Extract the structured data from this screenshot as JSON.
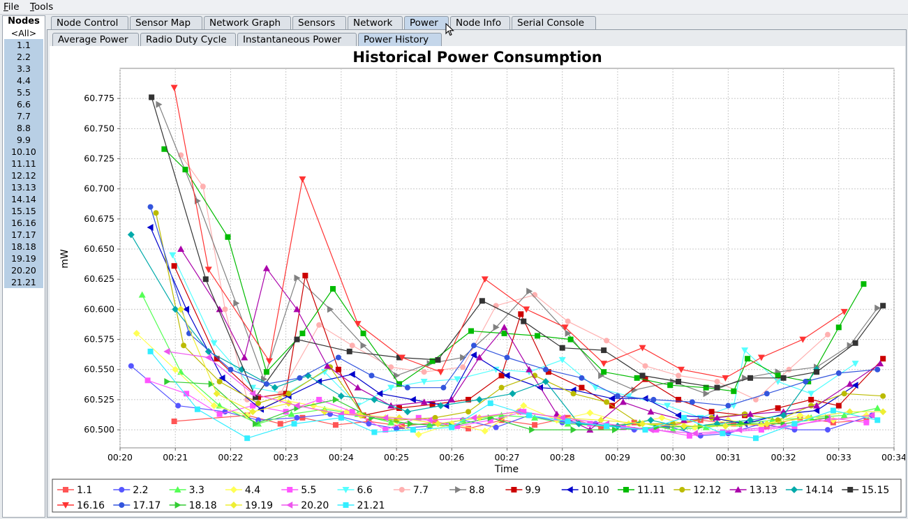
{
  "menu": {
    "file": "File",
    "tools": "Tools"
  },
  "nodes": {
    "title": "Nodes",
    "all_label": "<All>",
    "items": [
      "1.1",
      "2.2",
      "3.3",
      "4.4",
      "5.5",
      "6.6",
      "7.7",
      "8.8",
      "9.9",
      "10.10",
      "11.11",
      "12.12",
      "13.13",
      "14.14",
      "15.15",
      "16.16",
      "17.17",
      "18.18",
      "19.19",
      "20.20",
      "21.21"
    ]
  },
  "top_tabs": [
    "Node Control",
    "Sensor Map",
    "Network Graph",
    "Sensors",
    "Network",
    "Power",
    "Node Info",
    "Serial Console"
  ],
  "top_tab_active": "Power",
  "sub_tabs": [
    "Average Power",
    "Radio Duty Cycle",
    "Instantaneous Power",
    "Power History"
  ],
  "sub_tab_active": "Power History",
  "chart_data": {
    "type": "line",
    "title": "Historical Power Consumption",
    "xlabel": "Time",
    "ylabel": "mW",
    "xticks": [
      "00:20",
      "00:21",
      "00:22",
      "00:23",
      "00:24",
      "00:25",
      "00:26",
      "00:27",
      "00:28",
      "00:29",
      "00:30",
      "00:31",
      "00:32",
      "00:33",
      "00:34"
    ],
    "xlim_minutes": [
      20.0,
      34.0
    ],
    "ylim": [
      60.485,
      60.8
    ],
    "yticks": [
      60.5,
      60.525,
      60.55,
      60.575,
      60.6,
      60.625,
      60.65,
      60.675,
      60.7,
      60.725,
      60.75,
      60.775
    ],
    "grid": true,
    "legend_position": "bottom",
    "series": [
      {
        "name": "1.1",
        "color": "#ff5555",
        "marker": "square",
        "x": [
          20.98,
          22.3,
          22.9,
          23.3,
          23.9,
          24.5,
          25.1,
          25.7,
          26.3,
          26.9,
          27.5,
          28.1,
          28.7,
          29.3,
          29.9,
          30.5,
          31.1,
          31.7,
          32.3,
          32.9,
          33.5
        ],
        "y": [
          60.507,
          60.512,
          60.505,
          60.51,
          60.504,
          60.507,
          60.503,
          60.506,
          60.501,
          60.508,
          60.504,
          60.51,
          60.502,
          60.506,
          60.503,
          60.508,
          60.505,
          60.503,
          60.51,
          60.506,
          60.508
        ]
      },
      {
        "name": "2.2",
        "color": "#5555ff",
        "marker": "circle",
        "x": [
          20.2,
          21.05,
          21.9,
          22.5,
          23.2,
          23.8,
          24.5,
          25.0,
          25.6,
          26.2,
          26.8,
          27.4,
          28.0,
          28.6,
          29.3,
          29.9,
          30.5,
          31.0,
          31.6,
          32.2,
          32.8,
          33.6
        ],
        "y": [
          60.553,
          60.52,
          60.515,
          60.508,
          60.51,
          60.513,
          60.505,
          60.501,
          60.503,
          60.508,
          60.502,
          60.512,
          60.506,
          60.505,
          60.5,
          60.503,
          60.495,
          60.497,
          60.505,
          60.5,
          60.5,
          60.512
        ]
      },
      {
        "name": "3.3",
        "color": "#55ff55",
        "marker": "triangle-up",
        "x": [
          20.4,
          21.1,
          21.8,
          22.5,
          23.1,
          23.7,
          24.3,
          24.9,
          25.6,
          26.2,
          26.9,
          27.5,
          28.1,
          28.8,
          29.4,
          30.0,
          30.6,
          31.2,
          31.8,
          32.5,
          33.1,
          33.7
        ],
        "y": [
          60.612,
          60.548,
          60.52,
          60.505,
          60.513,
          60.517,
          60.513,
          60.506,
          60.504,
          60.508,
          60.512,
          60.51,
          60.505,
          60.503,
          60.506,
          60.5,
          60.502,
          60.505,
          60.508,
          60.51,
          60.512,
          60.518
        ]
      },
      {
        "name": "4.4",
        "color": "#ffff55",
        "marker": "diamond",
        "x": [
          20.3,
          21.0,
          21.7,
          22.3,
          22.9,
          23.5,
          24.1,
          24.8,
          25.4,
          26.0,
          26.6,
          27.3,
          27.9,
          28.5,
          29.2,
          29.8,
          30.4,
          31.0,
          31.6,
          32.3,
          32.9,
          33.5
        ],
        "y": [
          60.58,
          60.55,
          60.52,
          60.512,
          60.525,
          60.52,
          60.515,
          60.51,
          60.496,
          60.505,
          60.499,
          60.52,
          60.508,
          60.514,
          60.505,
          60.51,
          60.502,
          60.508,
          60.504,
          60.512,
          60.508,
          60.512
        ]
      },
      {
        "name": "5.5",
        "color": "#ff55ff",
        "marker": "square",
        "x": [
          20.5,
          21.2,
          21.8,
          22.4,
          23.0,
          23.6,
          24.2,
          24.8,
          25.4,
          26.1,
          26.7,
          27.3,
          27.9,
          28.5,
          29.1,
          29.7,
          30.3,
          30.9,
          31.6,
          32.2,
          32.8,
          33.5
        ],
        "y": [
          60.541,
          60.53,
          60.513,
          60.52,
          60.515,
          60.525,
          60.515,
          60.5,
          60.51,
          60.503,
          60.508,
          60.515,
          60.51,
          60.505,
          60.502,
          60.5,
          60.495,
          60.498,
          60.5,
          60.503,
          60.51,
          60.506
        ]
      },
      {
        "name": "6.6",
        "color": "#55ffff",
        "marker": "triangle-down",
        "x": [
          20.95,
          21.7,
          22.4,
          23.0,
          23.7,
          24.3,
          24.9,
          25.5,
          26.1,
          26.8,
          27.4,
          28.0,
          28.6,
          29.2,
          29.9,
          30.5,
          31.1,
          31.3,
          31.9,
          32.5,
          33.3
        ],
        "y": [
          60.645,
          60.572,
          60.535,
          60.53,
          60.548,
          60.52,
          60.535,
          60.54,
          60.542,
          60.55,
          60.548,
          60.558,
          60.535,
          60.528,
          60.52,
          60.51,
          60.52,
          60.566,
          60.54,
          60.53,
          60.555
        ]
      },
      {
        "name": "7.7",
        "color": "#ffb0b0",
        "marker": "circle",
        "x": [
          21.1,
          21.5,
          21.9,
          22.3,
          22.9,
          23.6,
          24.2,
          24.9,
          25.5,
          26.2,
          26.8,
          27.5,
          28.1,
          28.8,
          29.5,
          30.1,
          30.8,
          31.5,
          32.1,
          32.8
        ],
        "y": [
          60.728,
          60.702,
          60.6,
          60.525,
          60.53,
          60.587,
          60.57,
          60.552,
          60.548,
          60.552,
          60.603,
          60.612,
          60.59,
          60.574,
          60.553,
          60.545,
          60.54,
          60.525,
          60.55,
          60.579
        ]
      },
      {
        "name": "8.8",
        "color": "#808080",
        "marker": "triangle-right",
        "x": [
          20.7,
          21.4,
          22.1,
          22.6,
          23.2,
          23.8,
          24.4,
          25.0,
          25.6,
          26.2,
          26.8,
          27.4,
          28.1,
          28.7,
          29.3,
          30.0,
          30.6,
          31.3,
          31.9,
          32.6,
          33.2,
          33.7
        ],
        "y": [
          60.77,
          60.69,
          60.605,
          60.542,
          60.626,
          60.6,
          60.57,
          60.545,
          60.555,
          60.56,
          60.585,
          60.615,
          60.58,
          60.545,
          60.533,
          60.54,
          60.53,
          60.543,
          60.548,
          60.552,
          60.57,
          60.601
        ]
      },
      {
        "name": "9.9",
        "color": "#cc0000",
        "marker": "square",
        "x": [
          20.98,
          21.75,
          22.5,
          23.0,
          23.35,
          23.95,
          24.4,
          25.05,
          25.65,
          26.3,
          26.9,
          27.25,
          27.75,
          28.35,
          28.9,
          29.5,
          30.1,
          30.7,
          31.3,
          31.9,
          32.5,
          33.0,
          33.8
        ],
        "y": [
          60.636,
          60.559,
          60.527,
          60.53,
          60.628,
          60.55,
          60.512,
          60.518,
          60.521,
          60.525,
          60.545,
          60.596,
          60.548,
          60.535,
          60.52,
          60.542,
          60.525,
          60.515,
          60.512,
          60.518,
          60.525,
          60.52,
          60.559
        ]
      },
      {
        "name": "10.10",
        "color": "#0000cc",
        "marker": "triangle-left",
        "x": [
          20.55,
          21.2,
          21.85,
          22.55,
          23.05,
          23.6,
          24.2,
          24.7,
          25.3,
          25.9,
          26.4,
          27.0,
          27.6,
          28.2,
          28.9,
          29.5,
          30.1,
          30.7,
          31.3,
          32.0,
          32.6,
          33.3
        ],
        "y": [
          60.668,
          60.6,
          60.543,
          60.517,
          60.528,
          60.54,
          60.546,
          60.53,
          60.525,
          60.52,
          60.562,
          60.545,
          60.535,
          60.533,
          60.526,
          60.526,
          60.512,
          60.51,
          60.505,
          60.513,
          60.516,
          60.537
        ]
      },
      {
        "name": "11.11",
        "color": "#00bb00",
        "marker": "square",
        "x": [
          20.8,
          21.18,
          21.95,
          22.65,
          23.3,
          23.85,
          24.4,
          25.05,
          25.65,
          26.35,
          26.95,
          27.55,
          28.15,
          28.75,
          29.35,
          29.95,
          30.6,
          31.1,
          31.35,
          31.9,
          32.45,
          33.0,
          33.45
        ],
        "y": [
          60.733,
          60.716,
          60.66,
          60.548,
          60.58,
          60.617,
          60.58,
          60.538,
          60.557,
          60.582,
          60.58,
          60.578,
          60.575,
          60.548,
          60.543,
          60.537,
          60.535,
          60.532,
          60.559,
          60.545,
          60.54,
          60.585,
          60.621
        ]
      },
      {
        "name": "12.12",
        "color": "#bbbb00",
        "marker": "circle",
        "x": [
          20.65,
          21.15,
          21.8,
          22.5,
          23.05,
          23.8,
          24.4,
          25.0,
          25.7,
          26.3,
          26.9,
          27.5,
          28.2,
          28.8,
          29.4,
          30.0,
          30.7,
          31.3,
          31.9,
          32.5,
          33.1,
          33.8
        ],
        "y": [
          60.68,
          60.57,
          60.54,
          60.522,
          60.53,
          60.552,
          60.512,
          60.508,
          60.51,
          60.515,
          60.535,
          60.545,
          60.53,
          60.523,
          60.505,
          60.505,
          60.51,
          60.513,
          60.508,
          60.52,
          60.53,
          60.528
        ]
      },
      {
        "name": "13.13",
        "color": "#aa00aa",
        "marker": "triangle-up",
        "x": [
          21.1,
          21.8,
          22.25,
          22.65,
          23.2,
          23.75,
          24.3,
          24.9,
          25.5,
          26.0,
          26.5,
          26.95,
          27.4,
          27.9,
          28.5,
          29.1,
          29.6,
          30.2,
          30.8,
          31.4,
          32.0,
          32.6,
          33.2,
          33.75
        ],
        "y": [
          60.65,
          60.6,
          60.56,
          60.634,
          60.6,
          60.553,
          60.535,
          60.52,
          60.523,
          60.525,
          60.56,
          60.585,
          60.55,
          60.513,
          60.5,
          60.523,
          60.515,
          60.508,
          60.51,
          60.513,
          60.515,
          60.52,
          60.538,
          60.555
        ]
      },
      {
        "name": "14.14",
        "color": "#00aaaa",
        "marker": "diamond",
        "x": [
          20.2,
          21.0,
          21.6,
          22.2,
          22.8,
          23.4,
          24.0,
          24.6,
          25.2,
          25.8,
          26.5,
          27.1,
          27.7,
          28.3,
          29.0,
          29.6,
          30.2,
          30.8,
          31.4,
          32.0,
          32.6
        ],
        "y": [
          60.662,
          60.6,
          60.565,
          60.55,
          60.535,
          60.545,
          60.528,
          60.525,
          60.515,
          60.52,
          60.525,
          60.53,
          60.54,
          60.505,
          60.503,
          60.508,
          60.502,
          60.505,
          60.508,
          60.512,
          60.55
        ]
      },
      {
        "name": "15.15",
        "color": "#333333",
        "marker": "square",
        "x": [
          20.57,
          21.55,
          22.45,
          23.2,
          24.15,
          25.05,
          25.75,
          26.55,
          27.3,
          28.0,
          28.75,
          29.45,
          30.1,
          30.8,
          31.4,
          32.0,
          32.6,
          33.3,
          33.8
        ],
        "y": [
          60.776,
          60.625,
          60.527,
          60.575,
          60.565,
          60.56,
          60.558,
          60.607,
          60.59,
          60.568,
          60.566,
          60.545,
          60.54,
          60.535,
          60.543,
          60.543,
          60.548,
          60.572,
          60.603
        ]
      },
      {
        "name": "16.16",
        "color": "#ff3333",
        "marker": "triangle-down",
        "x": [
          20.98,
          21.6,
          22.7,
          23.3,
          24.3,
          25.1,
          25.8,
          26.6,
          27.35,
          28.05,
          28.75,
          29.45,
          30.15,
          30.95,
          31.6,
          32.35,
          33.1
        ],
        "y": [
          60.784,
          60.633,
          60.557,
          60.708,
          60.588,
          60.56,
          60.548,
          60.625,
          60.6,
          60.585,
          60.555,
          60.568,
          60.55,
          60.543,
          60.56,
          60.575,
          60.598
        ]
      },
      {
        "name": "17.17",
        "color": "#3355dd",
        "marker": "circle",
        "x": [
          20.55,
          21.25,
          22.0,
          22.65,
          23.25,
          23.95,
          24.55,
          25.2,
          25.85,
          26.4,
          27.0,
          27.7,
          28.35,
          29.0,
          29.65,
          30.35,
          31.0,
          31.7,
          32.4,
          33.0,
          33.7
        ],
        "y": [
          60.685,
          60.58,
          60.55,
          60.538,
          60.543,
          60.56,
          60.545,
          60.535,
          60.535,
          60.57,
          60.56,
          60.55,
          60.543,
          60.528,
          60.525,
          60.523,
          60.52,
          60.53,
          60.54,
          60.547,
          60.55
        ]
      },
      {
        "name": "18.18",
        "color": "#33cc33",
        "marker": "triangle-right",
        "x": [
          20.85,
          21.65,
          22.45,
          23.2,
          23.9,
          24.55,
          25.25,
          26.0,
          26.7,
          27.45,
          28.2,
          28.95,
          29.7,
          30.5,
          31.25,
          32.0,
          32.8
        ],
        "y": [
          60.54,
          60.538,
          60.505,
          60.518,
          60.525,
          60.51,
          60.505,
          60.503,
          60.51,
          60.5,
          60.5,
          60.5,
          60.502,
          60.503,
          60.505,
          60.505,
          60.51
        ]
      },
      {
        "name": "19.19",
        "color": "#eeee33",
        "marker": "diamond",
        "x": [
          21.1,
          21.75,
          22.4,
          23.05,
          23.7,
          24.35,
          25.05,
          25.75,
          26.5,
          27.2,
          27.95,
          28.7,
          29.45,
          30.2,
          30.95,
          31.7,
          32.45,
          33.2,
          33.8
        ],
        "y": [
          60.6,
          60.53,
          60.515,
          60.522,
          60.515,
          60.512,
          60.51,
          60.505,
          60.51,
          60.515,
          60.51,
          60.508,
          60.505,
          60.503,
          60.503,
          60.505,
          60.51,
          60.515,
          60.515
        ]
      },
      {
        "name": "20.20",
        "color": "#ee55ee",
        "marker": "triangle-left",
        "x": [
          20.85,
          21.6,
          22.4,
          23.2,
          24.0,
          24.8,
          25.6,
          26.4,
          27.2,
          28.0,
          28.8,
          29.6,
          30.4,
          31.2,
          32.0,
          32.8,
          33.6
        ],
        "y": [
          60.565,
          60.56,
          60.53,
          60.52,
          60.513,
          60.51,
          60.508,
          60.51,
          60.515,
          60.51,
          60.505,
          60.5,
          60.497,
          60.5,
          60.503,
          60.508,
          60.512
        ]
      },
      {
        "name": "21.21",
        "color": "#33eeff",
        "marker": "square",
        "x": [
          20.55,
          21.4,
          22.3,
          23.15,
          24.0,
          24.6,
          25.3,
          26.0,
          26.7,
          27.4,
          28.1,
          28.8,
          29.5,
          30.2,
          30.9,
          31.5,
          32.2,
          32.9,
          33.7
        ],
        "y": [
          60.565,
          60.517,
          60.493,
          60.505,
          60.51,
          60.498,
          60.5,
          60.502,
          60.522,
          60.512,
          60.507,
          60.503,
          60.5,
          60.51,
          60.497,
          60.493,
          60.505,
          60.516,
          60.508
        ]
      }
    ]
  }
}
